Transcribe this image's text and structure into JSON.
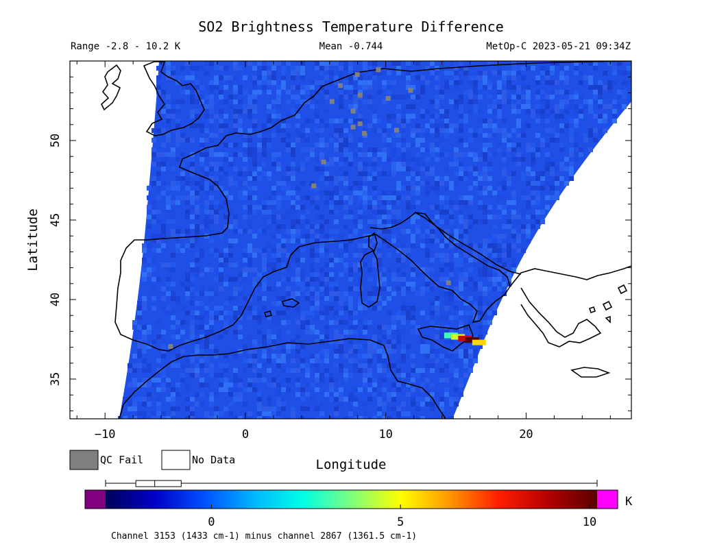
{
  "title": "SO2 Brightness Temperature Difference",
  "subtitle": {
    "range": "Range -2.8 - 10.2 K",
    "mean": "Mean -0.744",
    "platform_time": "MetOp-C 2023-05-21 09:34Z"
  },
  "map": {
    "xlabel": "Longitude",
    "ylabel": "Latitude",
    "lon_range": [
      -12.5,
      27.5
    ],
    "lat_range": [
      32.5,
      55.0
    ],
    "x_ticks": [
      -10,
      0,
      10,
      20
    ],
    "y_ticks": [
      35,
      40,
      45,
      50
    ],
    "x_tick_labels": [
      "−10",
      "0",
      "10",
      "20"
    ],
    "y_tick_labels": [
      "35",
      "40",
      "45",
      "50"
    ],
    "swath_background": "#1f4fe6",
    "no_data_color": "#ffffff",
    "qc_fail_color": "#808080",
    "coastline_color": "#000000",
    "hotspot": {
      "location": "Sicily / Mt. Etna",
      "pixels": [
        {
          "lon": 14.6,
          "lat": 37.75,
          "value": 3.0
        },
        {
          "lon": 15.1,
          "lat": 37.65,
          "value": 4.5
        },
        {
          "lon": 15.6,
          "lat": 37.55,
          "value": 8.5
        },
        {
          "lon": 16.1,
          "lat": 37.45,
          "value": 10.2
        },
        {
          "lon": 16.6,
          "lat": 37.3,
          "value": 5.5
        }
      ]
    }
  },
  "legend": {
    "qc_fail_label": "QC Fail",
    "no_data_label": "No Data"
  },
  "colorbar": {
    "unit": "K",
    "vmin": -2.8,
    "vmax": 10.2,
    "ticks": [
      0,
      5,
      10
    ],
    "tick_labels": [
      "0",
      "5",
      "10"
    ],
    "under_color": "#800080",
    "over_color": "#ff00ff",
    "stops": [
      "#00005a",
      "#0000c8",
      "#0050ff",
      "#00b4ff",
      "#00ffe6",
      "#7dff7d",
      "#ffff00",
      "#ff9600",
      "#ff1e00",
      "#b40000",
      "#5a0000"
    ],
    "boxplot": {
      "min": -2.8,
      "q1": -2.0,
      "median": -1.5,
      "q3": -0.8,
      "max": 10.2
    }
  },
  "footer": "Channel 3153 (1433 cm-1) minus channel 2867 (1361.5 cm-1)"
}
